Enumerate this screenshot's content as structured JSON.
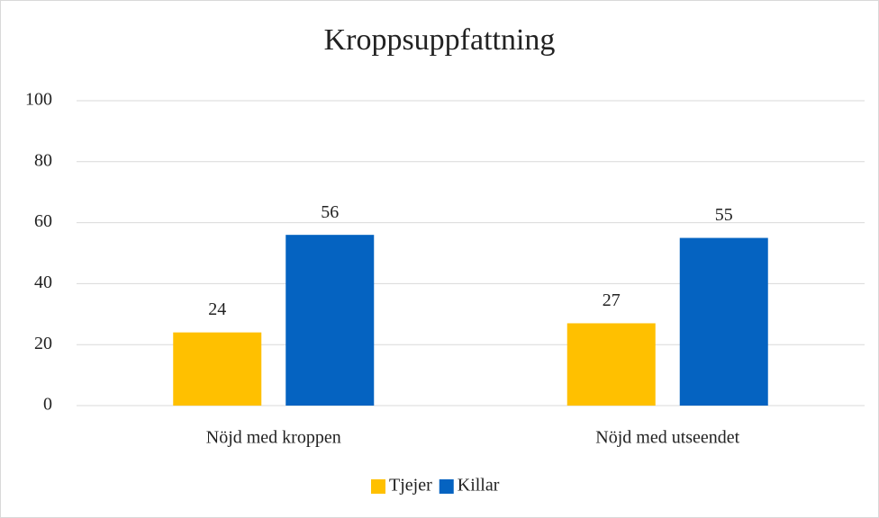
{
  "chart_data": {
    "type": "bar",
    "title": "Kroppsuppfattning",
    "categories": [
      "Nöjd med kroppen",
      "Nöjd med utseendet"
    ],
    "series": [
      {
        "name": "Tjejer",
        "color": "#ffc000",
        "values": [
          24,
          27
        ]
      },
      {
        "name": "Killar",
        "color": "#0563c1",
        "values": [
          56,
          55
        ]
      }
    ],
    "ylim": [
      0,
      100
    ],
    "yticks": [
      0,
      20,
      40,
      60,
      80,
      100
    ],
    "grid": true,
    "data_labels": true,
    "legend": "bottom"
  }
}
